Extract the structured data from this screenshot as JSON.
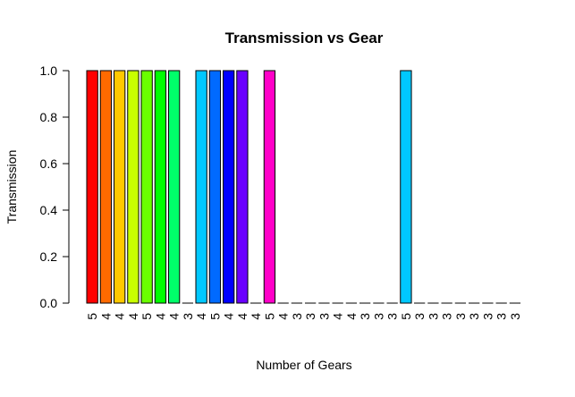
{
  "chart_data": {
    "type": "bar",
    "title": "Transmission vs Gear",
    "xlabel": "Number of Gears",
    "ylabel": "Transmission",
    "ylim": [
      0,
      1
    ],
    "yticks": [
      "0.0",
      "0.2",
      "0.4",
      "0.6",
      "0.8",
      "1.0"
    ],
    "categories": [
      "5",
      "4",
      "4",
      "4",
      "5",
      "4",
      "4",
      "3",
      "4",
      "5",
      "4",
      "4",
      "4",
      "5",
      "4",
      "3",
      "3",
      "3",
      "4",
      "4",
      "3",
      "3",
      "3",
      "5",
      "3",
      "3",
      "3",
      "3",
      "3",
      "3",
      "3",
      "3"
    ],
    "values": [
      1,
      1,
      1,
      1,
      1,
      1,
      1,
      0,
      1,
      1,
      1,
      1,
      0,
      1,
      0,
      0,
      0,
      0,
      0,
      0,
      0,
      0,
      0,
      1,
      0,
      0,
      0,
      0,
      0,
      0,
      0,
      0
    ],
    "colors": [
      "#FF0000",
      "#FF6A00",
      "#FFC800",
      "#C8FF00",
      "#6AFF00",
      "#00FF00",
      "#00FF6A",
      "#00FFC8",
      "#00C8FF",
      "#006AFF",
      "#0000FF",
      "#6A00FF",
      "#C800FF",
      "#FF00C8",
      "#FF006A",
      "#FF0000",
      "#FF6A00",
      "#FFC800",
      "#C8FF00",
      "#6AFF00",
      "#00FF00",
      "#00FF6A",
      "#00FFC8",
      "#00C8FF",
      "#006AFF",
      "#0000FF",
      "#6A00FF",
      "#C800FF",
      "#FF00C8",
      "#FF006A",
      "#FF0000",
      "#FF6A00"
    ],
    "grid": false,
    "legend": "none"
  }
}
